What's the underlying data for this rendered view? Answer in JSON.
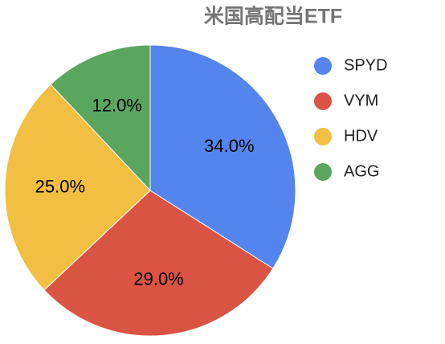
{
  "chart_data": {
    "type": "pie",
    "title": "米国高配当ETF",
    "categories": [
      "SPYD",
      "VYM",
      "HDV",
      "AGG"
    ],
    "values": [
      34,
      29,
      25,
      12
    ],
    "value_labels": [
      "34.0%",
      "29.0%",
      "25.0%",
      "12.0%"
    ],
    "colors": [
      "#5484ed",
      "#da5443",
      "#f2bf42",
      "#5aa65e"
    ],
    "legend": "right"
  }
}
